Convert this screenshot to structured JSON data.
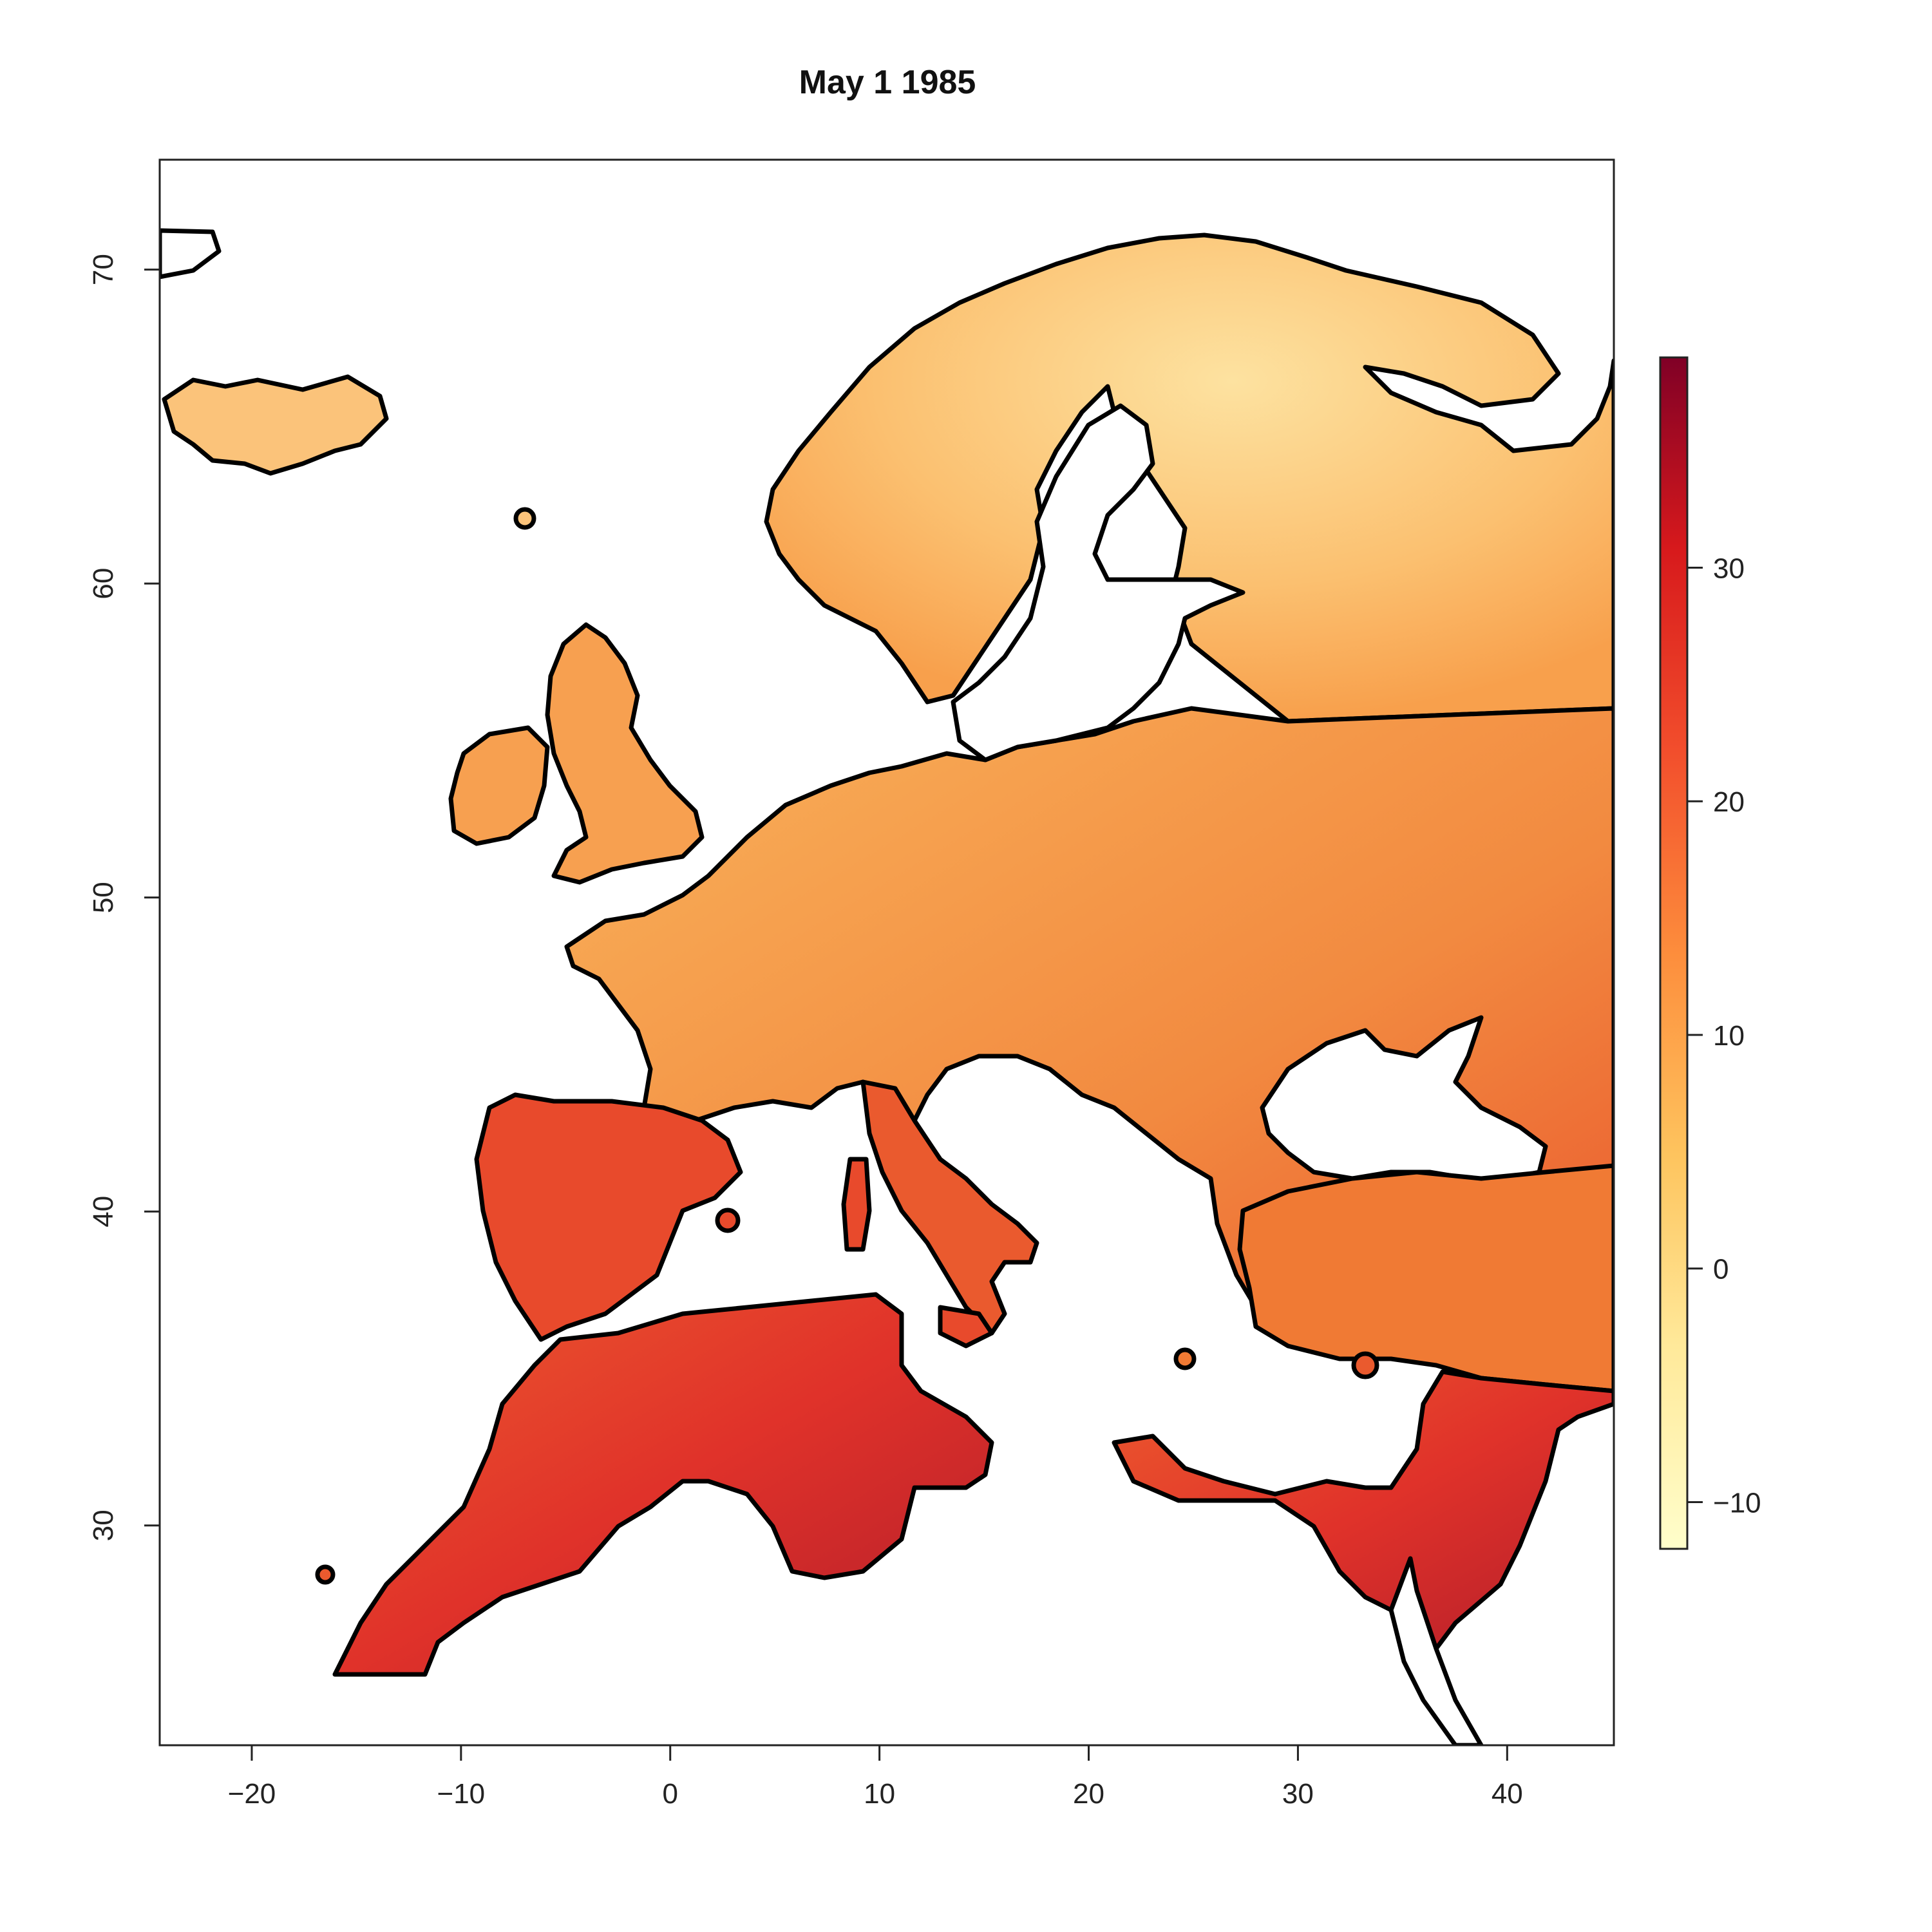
{
  "chart_data": {
    "type": "heatmap",
    "title": "May 1 1985",
    "xlabel": "",
    "ylabel": "",
    "xlim": [
      -24.4,
      45.1
    ],
    "ylim": [
      23,
      73.5
    ],
    "x_ticks": [
      -20,
      -10,
      0,
      10,
      20,
      30,
      40
    ],
    "y_ticks": [
      30,
      40,
      50,
      60,
      70
    ],
    "legend": {
      "position": "right",
      "range": [
        -12,
        39
      ],
      "ticks": [
        -10,
        0,
        10,
        20,
        30
      ]
    },
    "color_scale": [
      "#fffecb",
      "#ffe99a",
      "#fec45e",
      "#fd8d3c",
      "#f24e2c",
      "#d7191c",
      "#800026"
    ],
    "colors": {
      "cold": "#fde6a0",
      "mild": "#fbb35a",
      "warm": "#f07a34",
      "hot": "#e0322a",
      "very_hot": "#b41e2a",
      "coast": "#000000"
    }
  }
}
